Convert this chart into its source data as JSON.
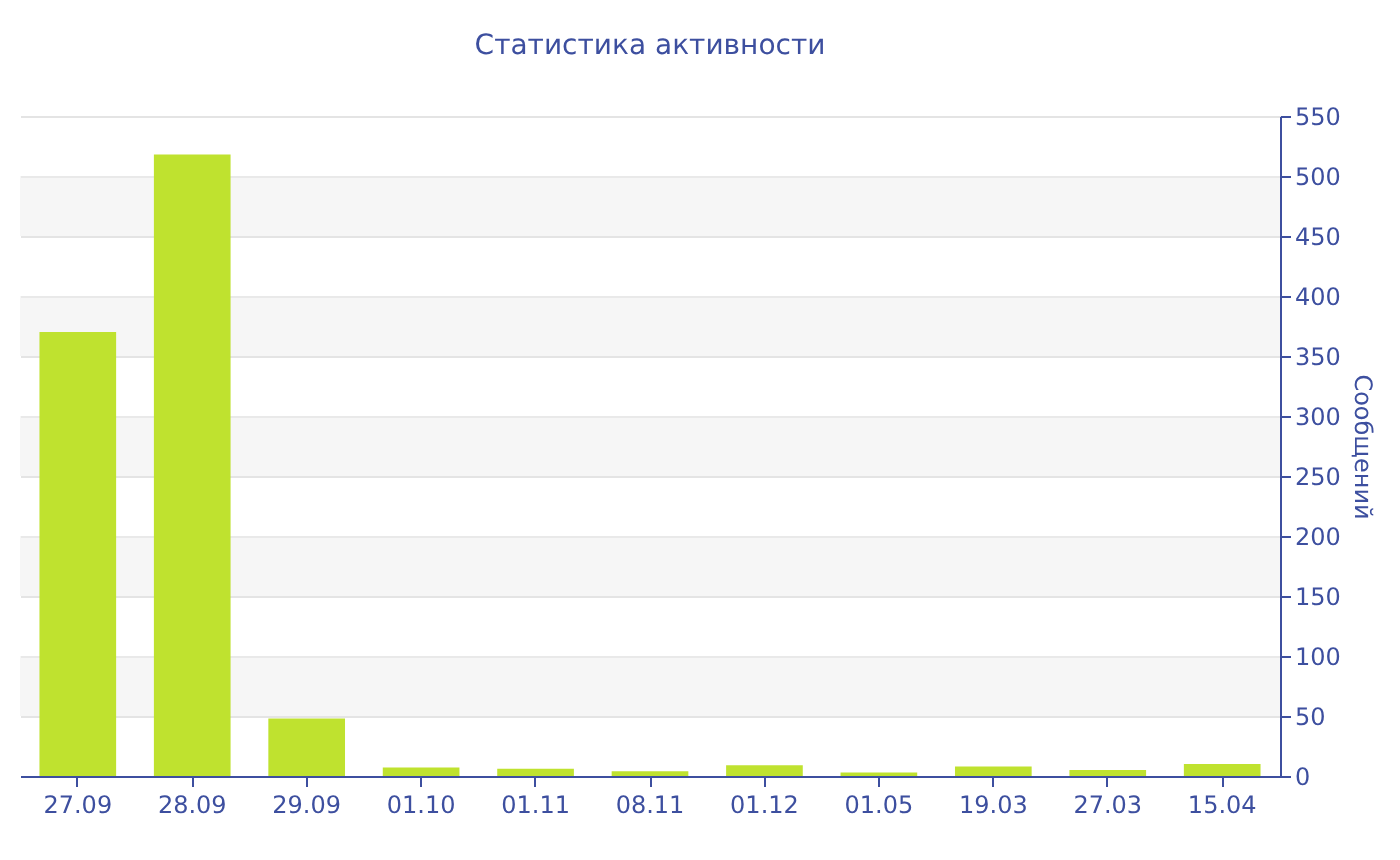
{
  "chart_data": {
    "type": "bar",
    "title": "Статистика активности",
    "y2label": "Сообщений",
    "categories": [
      "27.09",
      "28.09",
      "29.09",
      "01.10",
      "01.11",
      "08.11",
      "01.12",
      "01.05",
      "19.03",
      "27.03",
      "15.04"
    ],
    "series": [
      {
        "color": "#bfe22f",
        "axis": "y2",
        "values": [
          370,
          518,
          48,
          7,
          6,
          4,
          9,
          3,
          8,
          5,
          10
        ]
      }
    ],
    "y2lim": [
      0,
      550
    ],
    "y2ticks": [
      0,
      50,
      100,
      150,
      200,
      250,
      300,
      350,
      400,
      450,
      500,
      550
    ],
    "grid": "y"
  }
}
